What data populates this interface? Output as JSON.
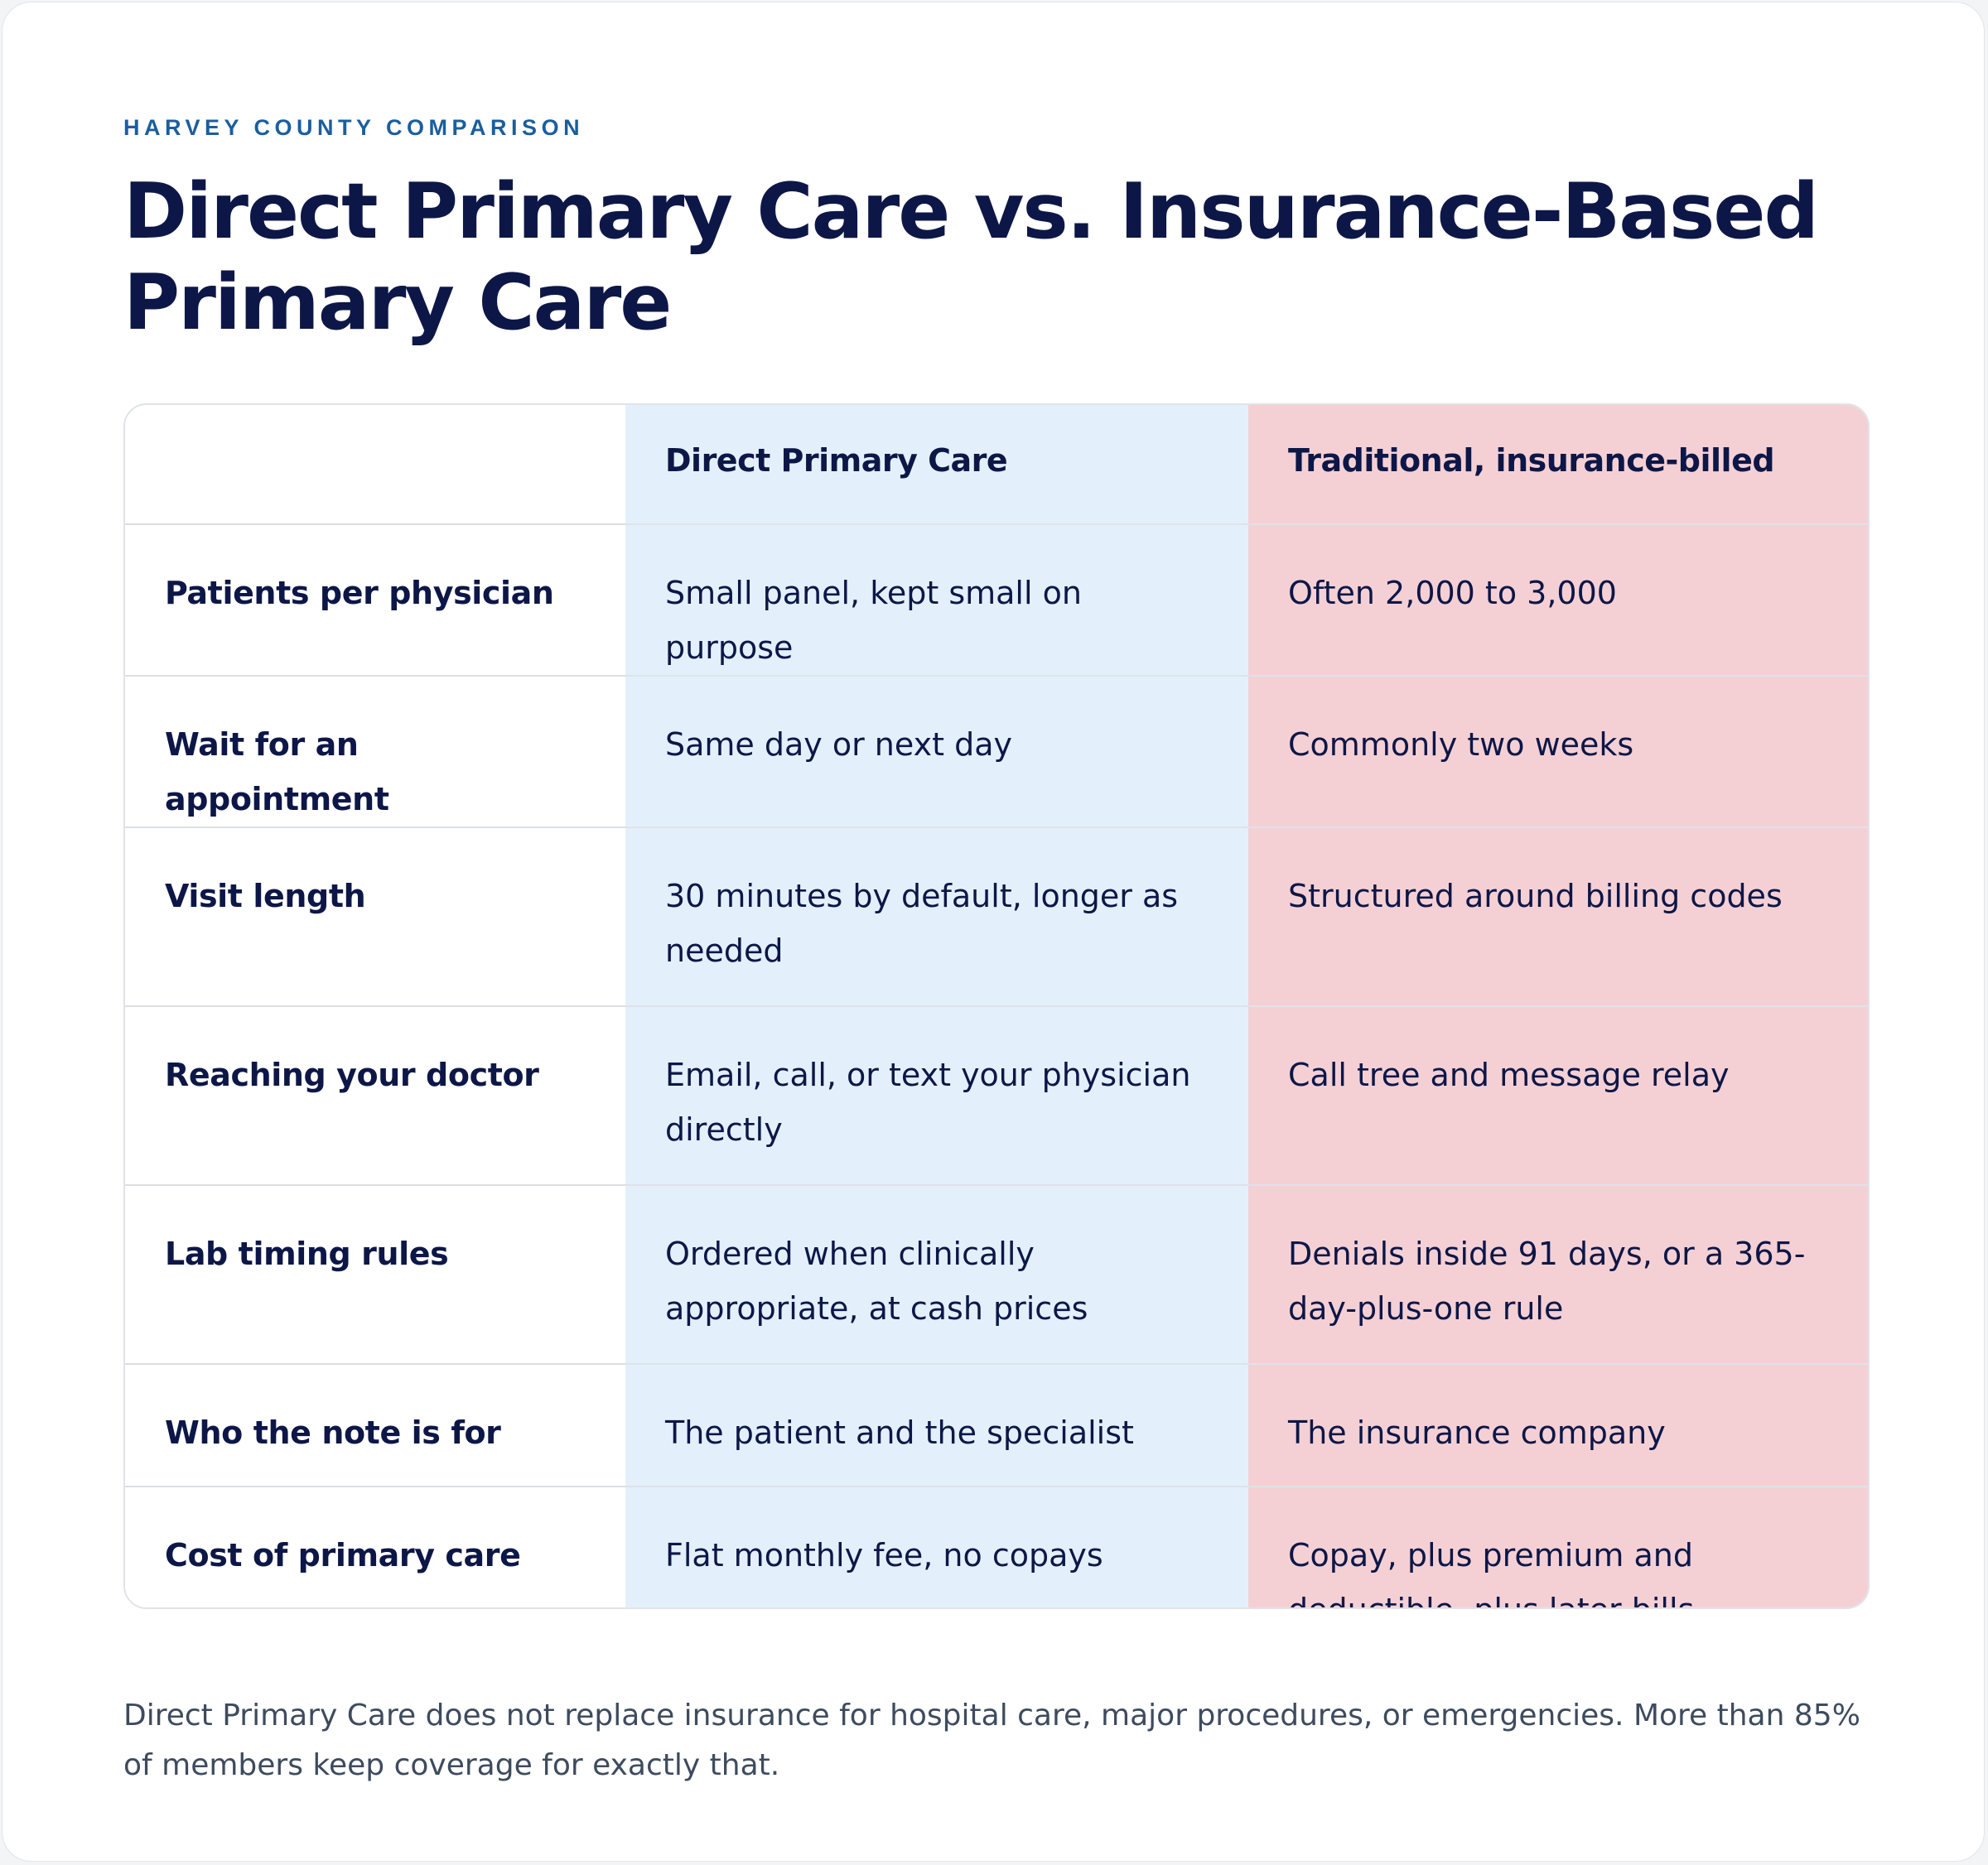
{
  "eyebrow": "HARVEY COUNTY COMPARISON",
  "title": "Direct Primary Care vs. Insurance-Based Primary Care",
  "table": {
    "headers": [
      "",
      "Direct Primary Care",
      "Traditional, insurance-billed"
    ],
    "rows": [
      {
        "label": "Patients per physician",
        "dpc": "Small panel, kept small on purpose",
        "traditional": "Often 2,000 to 3,000"
      },
      {
        "label": "Wait for an appointment",
        "dpc": "Same day or next day",
        "traditional": "Commonly two weeks"
      },
      {
        "label": "Visit length",
        "dpc": "30 minutes by default, longer as needed",
        "traditional": "Structured around billing codes"
      },
      {
        "label": "Reaching your doctor",
        "dpc": "Email, call, or text your physician directly",
        "traditional": "Call tree and message relay"
      },
      {
        "label": "Lab timing rules",
        "dpc": "Ordered when clinically appropriate, at cash prices",
        "traditional": "Denials inside 91 days, or a 365-day-plus-one rule"
      },
      {
        "label": "Who the note is for",
        "dpc": "The patient and the specialist",
        "traditional": "The insurance company"
      },
      {
        "label": "Cost of primary care",
        "dpc": "Flat monthly fee, no copays",
        "traditional": "Copay, plus premium and deductible, plus later bills"
      }
    ]
  },
  "footnote": "Direct Primary Care does not replace insurance for hospital care, major procedures, or emergencies. More than 85% of members keep coverage for exactly that.",
  "colors": {
    "accent": "#1b5e9e",
    "title": "#0d1747",
    "dpc_column": "#e3f0fc",
    "traditional_column": "#f4d0d5"
  }
}
